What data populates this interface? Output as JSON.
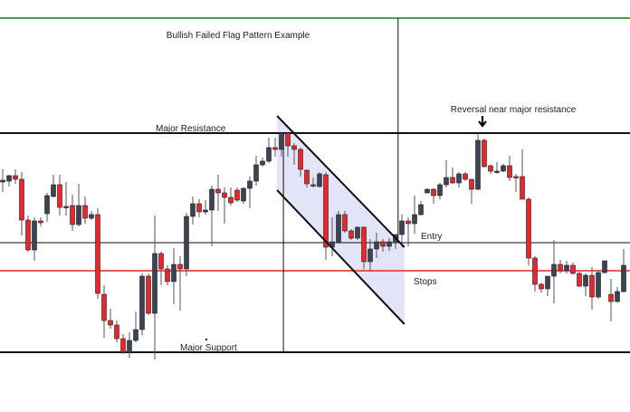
{
  "chart_data": {
    "type": "candlestick",
    "title": "Bullish Failed Flag Pattern Example",
    "xlabel": "",
    "ylabel": "",
    "ylim": [
      -55,
      400
    ],
    "xlim": [
      -0.5,
      99
    ],
    "grid": false,
    "colors": {
      "bullish": "#3b4452",
      "bearish": "#e8262c",
      "wick": "#555555",
      "top_border": "#1a7a1a",
      "stops": "#e8262c",
      "channel_fill": "#e3e4f7"
    },
    "ohlc": [
      [
        199,
        213,
        188,
        201
      ],
      [
        200,
        207,
        194,
        206
      ],
      [
        206,
        213,
        197,
        202
      ],
      [
        202,
        210,
        140,
        157
      ],
      [
        157,
        162,
        122,
        124
      ],
      [
        124,
        160,
        112,
        156
      ],
      [
        156,
        160,
        150,
        154
      ],
      [
        164,
        187,
        155,
        184
      ],
      [
        183,
        207,
        182,
        196
      ],
      [
        196,
        207,
        162,
        171
      ],
      [
        171,
        199,
        162,
        172
      ],
      [
        173,
        185,
        145,
        152
      ],
      [
        152,
        197,
        150,
        173
      ],
      [
        173,
        183,
        153,
        159
      ],
      [
        159,
        167,
        157,
        163
      ],
      [
        163,
        170,
        70,
        76
      ],
      [
        75,
        85,
        27,
        46
      ],
      [
        46,
        59,
        37,
        41
      ],
      [
        41,
        46,
        22,
        26
      ],
      [
        26,
        31,
        9,
        11
      ],
      [
        11,
        33,
        5,
        24
      ],
      [
        24,
        56,
        22,
        36
      ],
      [
        36,
        98,
        30,
        95
      ],
      [
        95,
        98,
        52,
        54
      ],
      [
        54,
        162,
        3,
        120
      ],
      [
        120,
        122,
        85,
        103
      ],
      [
        103,
        107,
        85,
        89
      ],
      [
        89,
        126,
        64,
        108
      ],
      [
        108,
        117,
        57,
        103
      ],
      [
        103,
        165,
        95,
        161
      ],
      [
        161,
        183,
        152,
        175
      ],
      [
        175,
        180,
        160,
        166
      ],
      [
        166,
        179,
        163,
        168
      ],
      [
        168,
        195,
        128,
        191
      ],
      [
        191,
        207,
        167,
        187
      ],
      [
        187,
        193,
        153,
        182
      ],
      [
        182,
        193,
        173,
        176
      ],
      [
        190,
        193,
        177,
        179
      ],
      [
        178,
        193,
        175,
        192
      ],
      [
        192,
        205,
        170,
        200
      ],
      [
        200,
        228,
        195,
        218
      ],
      [
        218,
        226,
        216,
        222
      ],
      [
        222,
        248,
        220,
        237
      ],
      [
        237,
        248,
        227,
        235
      ],
      [
        235,
        253,
        227,
        253
      ],
      [
        253,
        253,
        227,
        239
      ],
      [
        239,
        242,
        218,
        235
      ],
      [
        235,
        237,
        205,
        213
      ],
      [
        212,
        213,
        193,
        197
      ],
      [
        196,
        204,
        193,
        195
      ],
      [
        194,
        210,
        193,
        208
      ],
      [
        207,
        210,
        113,
        127
      ],
      [
        127,
        160,
        117,
        133
      ],
      [
        132,
        167,
        131,
        163
      ],
      [
        163,
        167,
        143,
        145
      ],
      [
        145,
        147,
        135,
        137
      ],
      [
        137,
        150,
        135,
        149
      ],
      [
        149,
        150,
        103,
        111
      ],
      [
        111,
        136,
        100,
        125
      ],
      [
        125,
        143,
        115,
        133
      ],
      [
        133,
        136,
        122,
        128
      ],
      [
        128,
        137,
        123,
        133
      ],
      [
        133,
        141,
        125,
        141
      ],
      [
        141,
        163,
        127,
        156
      ],
      [
        156,
        160,
        128,
        153
      ],
      [
        153,
        184,
        142,
        163
      ],
      [
        163,
        178,
        162,
        174
      ],
      [
        187,
        192,
        187,
        191
      ],
      [
        191,
        192,
        175,
        184
      ],
      [
        184,
        198,
        180,
        196
      ],
      [
        196,
        223,
        193,
        204
      ],
      [
        204,
        215,
        197,
        198
      ],
      [
        198,
        210,
        193,
        208
      ],
      [
        208,
        210,
        200,
        202
      ],
      [
        202,
        202,
        175,
        191
      ],
      [
        191,
        253,
        190,
        245
      ],
      [
        245,
        247,
        215,
        216
      ],
      [
        217,
        218,
        208,
        211
      ],
      [
        210,
        221,
        208,
        211
      ],
      [
        211,
        219,
        210,
        217
      ],
      [
        217,
        228,
        200,
        204
      ],
      [
        205,
        208,
        188,
        204
      ],
      [
        205,
        235,
        180,
        180
      ],
      [
        180,
        182,
        107,
        115
      ],
      [
        115,
        117,
        78,
        86
      ],
      [
        86,
        88,
        77,
        81
      ],
      [
        81,
        95,
        73,
        95
      ],
      [
        95,
        135,
        65,
        108
      ],
      [
        108,
        113,
        98,
        101
      ],
      [
        101,
        112,
        98,
        107
      ],
      [
        107,
        110,
        97,
        98
      ],
      [
        98,
        100,
        83,
        84
      ],
      [
        84,
        98,
        73,
        96
      ],
      [
        96,
        105,
        58,
        72
      ],
      [
        72,
        101,
        70,
        99
      ],
      [
        99,
        112,
        98,
        112
      ],
      [
        75,
        92,
        45,
        67
      ],
      [
        67,
        83,
        66,
        78
      ],
      [
        78,
        125,
        77,
        107
      ]
    ],
    "levels": [
      {
        "name": "resistance",
        "label": "Major Resistance",
        "price": 253
      },
      {
        "name": "entry",
        "label": "Entry",
        "price": 132
      },
      {
        "name": "stops",
        "label": "Stops",
        "price": 101
      },
      {
        "name": "support",
        "label": "Major Support",
        "price": 11
      }
    ],
    "channel": {
      "upper": [
        [
          43.3,
          272
        ],
        [
          63.4,
          127
        ]
      ],
      "lower": [
        [
          43.3,
          190
        ],
        [
          63.4,
          42
        ]
      ]
    },
    "vertical_markers": [
      {
        "index": 44.3,
        "from": 11,
        "to": 253
      },
      {
        "index": 62.4,
        "from": 132,
        "to": 380
      }
    ],
    "annotations": [
      {
        "text": "Reversal near major resistance",
        "index": 75.9,
        "arrow": "down"
      }
    ]
  }
}
